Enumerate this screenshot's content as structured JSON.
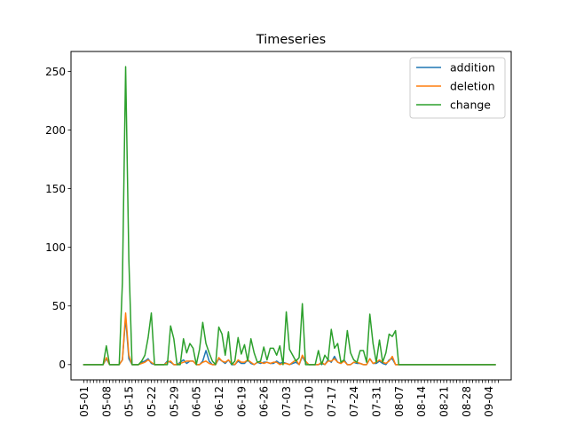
{
  "chart_data": {
    "type": "line",
    "title": "Timeseries",
    "xlabel": "",
    "ylabel": "",
    "x_start": "2018-05-01",
    "x_end": "2018-09-07",
    "xlim": [
      "2018-04-27",
      "2018-09-11"
    ],
    "ylim": [
      -13,
      267
    ],
    "yticks": [
      0,
      50,
      100,
      150,
      200,
      250
    ],
    "xticks": [
      "05-01",
      "05-08",
      "05-15",
      "05-22",
      "05-29",
      "06-05",
      "06-12",
      "06-19",
      "06-26",
      "07-03",
      "07-10",
      "07-17",
      "07-24",
      "07-31",
      "08-07",
      "08-14",
      "08-21",
      "08-28",
      "09-04"
    ],
    "legend_position": "upper right",
    "grid": false,
    "series": [
      {
        "name": "addition",
        "color": "#1f77b4",
        "values": [
          0,
          0,
          0,
          0,
          0,
          0,
          0,
          5,
          0,
          0,
          0,
          0,
          4,
          40,
          5,
          0,
          0,
          0,
          2,
          3,
          5,
          1,
          0,
          0,
          0,
          0,
          3,
          2,
          0,
          0,
          2,
          4,
          1,
          3,
          3,
          0,
          0,
          3,
          12,
          3,
          0,
          0,
          5,
          3,
          1,
          4,
          0,
          0,
          3,
          1,
          1,
          4,
          1,
          0,
          2,
          1,
          2,
          2,
          1,
          1,
          3,
          1,
          2,
          1,
          0,
          1,
          2,
          0,
          7,
          2,
          0,
          0,
          0,
          0,
          1,
          0,
          4,
          2,
          7,
          2,
          1,
          4,
          0,
          0,
          2,
          1,
          1,
          0,
          0,
          5,
          1,
          1,
          3,
          1,
          0,
          4,
          5,
          0,
          0,
          0,
          0,
          0,
          0,
          0,
          0,
          0,
          0,
          0,
          0,
          0,
          0,
          0,
          0,
          0,
          0,
          0,
          0,
          0,
          0,
          0,
          0,
          0,
          0,
          0,
          0,
          0,
          0,
          0,
          0
        ]
      },
      {
        "name": "deletion",
        "color": "#ff7f0e",
        "values": [
          0,
          0,
          0,
          0,
          0,
          0,
          0,
          6,
          0,
          0,
          0,
          0,
          4,
          44,
          8,
          0,
          0,
          0,
          1,
          2,
          4,
          2,
          0,
          0,
          0,
          0,
          2,
          3,
          0,
          0,
          1,
          2,
          3,
          3,
          3,
          0,
          0,
          2,
          3,
          1,
          0,
          0,
          6,
          3,
          2,
          4,
          1,
          0,
          4,
          2,
          2,
          4,
          2,
          0,
          2,
          2,
          1,
          2,
          1,
          2,
          2,
          0,
          1,
          1,
          0,
          2,
          4,
          0,
          8,
          3,
          0,
          0,
          0,
          0,
          2,
          0,
          3,
          3,
          5,
          2,
          1,
          3,
          0,
          0,
          2,
          2,
          1,
          0,
          0,
          5,
          1,
          2,
          4,
          2,
          1,
          3,
          7,
          0,
          0,
          0,
          0,
          0,
          0,
          0,
          0,
          0,
          0,
          0,
          0,
          0,
          0,
          0,
          0,
          0,
          0,
          0,
          0,
          0,
          0,
          0,
          0,
          0,
          0,
          0,
          0,
          0,
          0,
          0,
          0
        ]
      },
      {
        "name": "change",
        "color": "#2ca02c",
        "values": [
          0,
          0,
          0,
          0,
          0,
          0,
          0,
          16,
          0,
          0,
          0,
          0,
          70,
          254,
          90,
          0,
          0,
          0,
          3,
          8,
          23,
          44,
          0,
          0,
          0,
          0,
          0,
          33,
          22,
          0,
          0,
          22,
          10,
          18,
          14,
          0,
          13,
          36,
          18,
          10,
          3,
          0,
          32,
          26,
          8,
          28,
          0,
          3,
          23,
          9,
          17,
          3,
          22,
          10,
          2,
          3,
          15,
          4,
          14,
          14,
          8,
          16,
          0,
          45,
          13,
          8,
          3,
          6,
          52,
          0,
          0,
          0,
          0,
          12,
          0,
          8,
          4,
          30,
          14,
          18,
          2,
          4,
          29,
          10,
          4,
          2,
          12,
          12,
          2,
          43,
          18,
          2,
          21,
          2,
          10,
          26,
          24,
          29,
          0,
          0,
          0,
          0,
          0,
          0,
          0,
          0,
          0,
          0,
          0,
          0,
          0,
          0,
          0,
          0,
          0,
          0,
          0,
          0,
          0,
          0,
          0,
          0,
          0,
          0,
          0,
          0,
          0,
          0,
          0
        ]
      }
    ]
  }
}
